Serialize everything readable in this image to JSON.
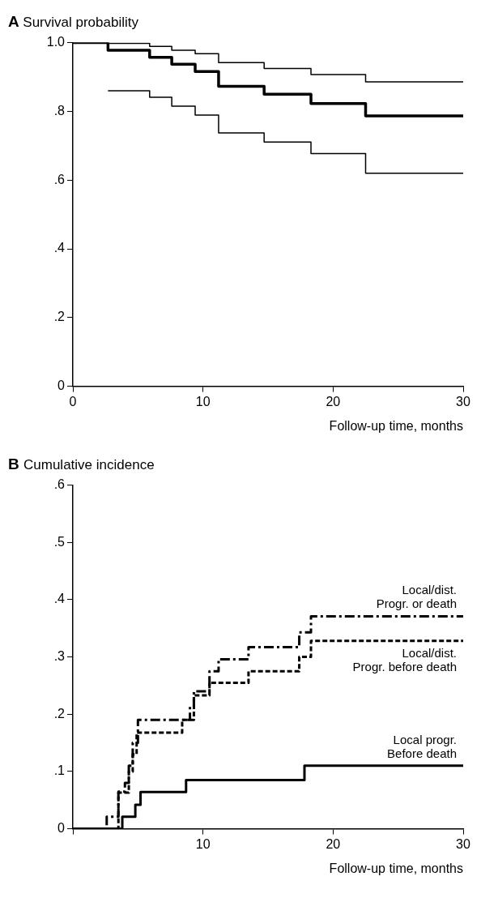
{
  "chart_data": [
    {
      "type": "step",
      "title": "A Survival probability",
      "xlabel": "Follow-up time, months",
      "xlim": [
        0,
        30
      ],
      "xticks": [
        0,
        10,
        20,
        30
      ],
      "ylim": [
        0,
        1
      ],
      "yticks": [
        {
          "value": 0,
          "label": "0"
        },
        {
          "value": 0.2,
          "label": ".2"
        },
        {
          "value": 0.4,
          "label": ".4"
        },
        {
          "value": 0.6,
          "label": ".6"
        },
        {
          "value": 0.8,
          "label": ".8"
        },
        {
          "value": 1,
          "label": "1.0"
        }
      ],
      "grid": false,
      "legend": false,
      "series": [
        {
          "color": "#000000",
          "line_style": "solid",
          "x": [
            0,
            2.7,
            5.9,
            7.6,
            9.4,
            11.2,
            14.7,
            18.3,
            22.5,
            30
          ],
          "values": [
            1,
            0.998,
            0.989,
            0.978,
            0.968,
            0.942,
            0.925,
            0.907,
            0.886,
            0.886
          ]
        },
        {
          "color": "#000000",
          "line_style": "solid",
          "x": [
            0,
            2.7,
            5.9,
            7.6,
            9.4,
            11.2,
            14.7,
            18.3,
            22.5,
            30
          ],
          "values": [
            1,
            0.978,
            0.957,
            0.937,
            0.916,
            0.873,
            0.85,
            0.823,
            0.787,
            0.787
          ]
        },
        {
          "color": "#000000",
          "line_style": "solid",
          "x": [
            2.7,
            5.9,
            7.6,
            9.4,
            11.2,
            14.7,
            18.3,
            22.5,
            30
          ],
          "values": [
            0.86,
            0.841,
            0.815,
            0.789,
            0.737,
            0.711,
            0.677,
            0.62,
            0.62
          ]
        }
      ]
    },
    {
      "type": "step",
      "title": "B Cumulative incidence",
      "xlabel": "Follow-up time, months",
      "xlim": [
        0,
        30
      ],
      "xticks": [
        {
          "value": 0,
          "label": null
        },
        10,
        20,
        30
      ],
      "ylim": [
        0,
        0.6
      ],
      "yticks": [
        {
          "value": 0,
          "label": "0"
        },
        {
          "value": 0.1,
          "label": ".1"
        },
        {
          "value": 0.2,
          "label": ".2"
        },
        {
          "value": 0.3,
          "label": ".3"
        },
        {
          "value": 0.4,
          "label": ".4"
        },
        {
          "value": 0.5,
          "label": ".5"
        },
        {
          "value": 0.6,
          "label": ".6"
        }
      ],
      "grid": false,
      "legend": false,
      "series": [
        {
          "name": "Local/dist.\nProgr. or death",
          "color": "#000000",
          "line_style": "dashdot",
          "x": [
            0,
            2.6,
            3.5,
            4.0,
            4.3,
            4.6,
            5.0,
            8.4,
            9.0,
            9.3,
            10.5,
            11.2,
            13.5,
            17.4,
            18.3,
            30
          ],
          "values": [
            0,
            0.021,
            0.065,
            0.08,
            0.11,
            0.15,
            0.19,
            0.19,
            0.213,
            0.24,
            0.275,
            0.296,
            0.317,
            0.343,
            0.371,
            0.371
          ]
        },
        {
          "name": "Local/dist.\nProgr. before death",
          "color": "#000000",
          "line_style": "dashed",
          "x": [
            0,
            3.5,
            4.3,
            4.6,
            4.9,
            8.4,
            9.3,
            10.5,
            13.5,
            17.4,
            18.3,
            30
          ],
          "values": [
            0,
            0.063,
            0.1,
            0.13,
            0.168,
            0.19,
            0.233,
            0.255,
            0.275,
            0.3,
            0.328,
            0.328
          ]
        },
        {
          "name": "Local progr.\nBefore death",
          "color": "#000000",
          "line_style": "solid",
          "x": [
            0,
            3.8,
            4.8,
            5.2,
            8.7,
            17.8,
            30
          ],
          "values": [
            0,
            0.021,
            0.042,
            0.064,
            0.085,
            0.11,
            0.11
          ]
        }
      ]
    }
  ]
}
